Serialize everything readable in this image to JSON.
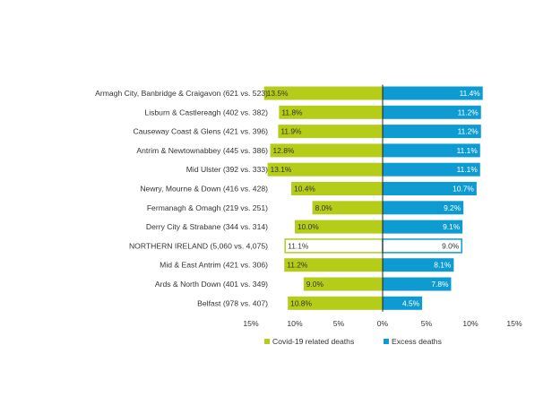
{
  "chart_data": {
    "type": "bar",
    "orientation": "horizontal-diverging",
    "categories": [
      "Armagh City, Banbridge & Craigavon (621 vs. 523)",
      "Lisburn & Castlereagh (402 vs. 382)",
      "Causeway Coast & Glens (421 vs. 396)",
      "Antrim & Newtownabbey (445 vs. 386)",
      "Mid Ulster (392 vs. 333)",
      "Newry, Mourne & Down (416 vs. 428)",
      "Fermanagh & Omagh (219 vs. 251)",
      "Derry City & Strabane (344 vs. 314)",
      "NORTHERN IRELAND (5,060 vs. 4,075)",
      "Mid & East Antrim (421 vs. 306)",
      "Ards & North Down (401 vs. 349)",
      "Belfast (978 vs. 407)"
    ],
    "series": [
      {
        "name": "Covid-19 related deaths",
        "color": "#b5cc18",
        "side": "left",
        "values": [
          13.5,
          11.8,
          11.9,
          12.8,
          13.1,
          10.4,
          8.0,
          10.0,
          11.1,
          11.2,
          9.0,
          10.8
        ],
        "labels": [
          "13.5%",
          "11.8%",
          "11.9%",
          "12.8%",
          "13.1%",
          "10.4%",
          "8.0%",
          "10.0%",
          "11.1%",
          "11.2%",
          "9.0%",
          "10.8%"
        ]
      },
      {
        "name": "Excess deaths",
        "color": "#0e9bd2",
        "side": "right",
        "values": [
          11.4,
          11.2,
          11.2,
          11.1,
          11.1,
          10.7,
          9.2,
          9.1,
          9.0,
          8.1,
          7.8,
          4.5
        ],
        "labels": [
          "11.4%",
          "11.2%",
          "11.2%",
          "11.1%",
          "11.1%",
          "10.7%",
          "9.2%",
          "9.1%",
          "9.0%",
          "8.1%",
          "7.8%",
          "4.5%"
        ]
      }
    ],
    "highlight_category_index": 8,
    "xlim": [
      -15,
      15
    ],
    "ticks": [
      -15,
      -10,
      -5,
      0,
      5,
      10,
      15
    ],
    "tick_labels": [
      "15%",
      "10%",
      "5%",
      "0%",
      "5%",
      "10%",
      "15%"
    ],
    "grid": false,
    "legend": "bottom-center",
    "title": "",
    "xlabel": "",
    "ylabel": ""
  }
}
